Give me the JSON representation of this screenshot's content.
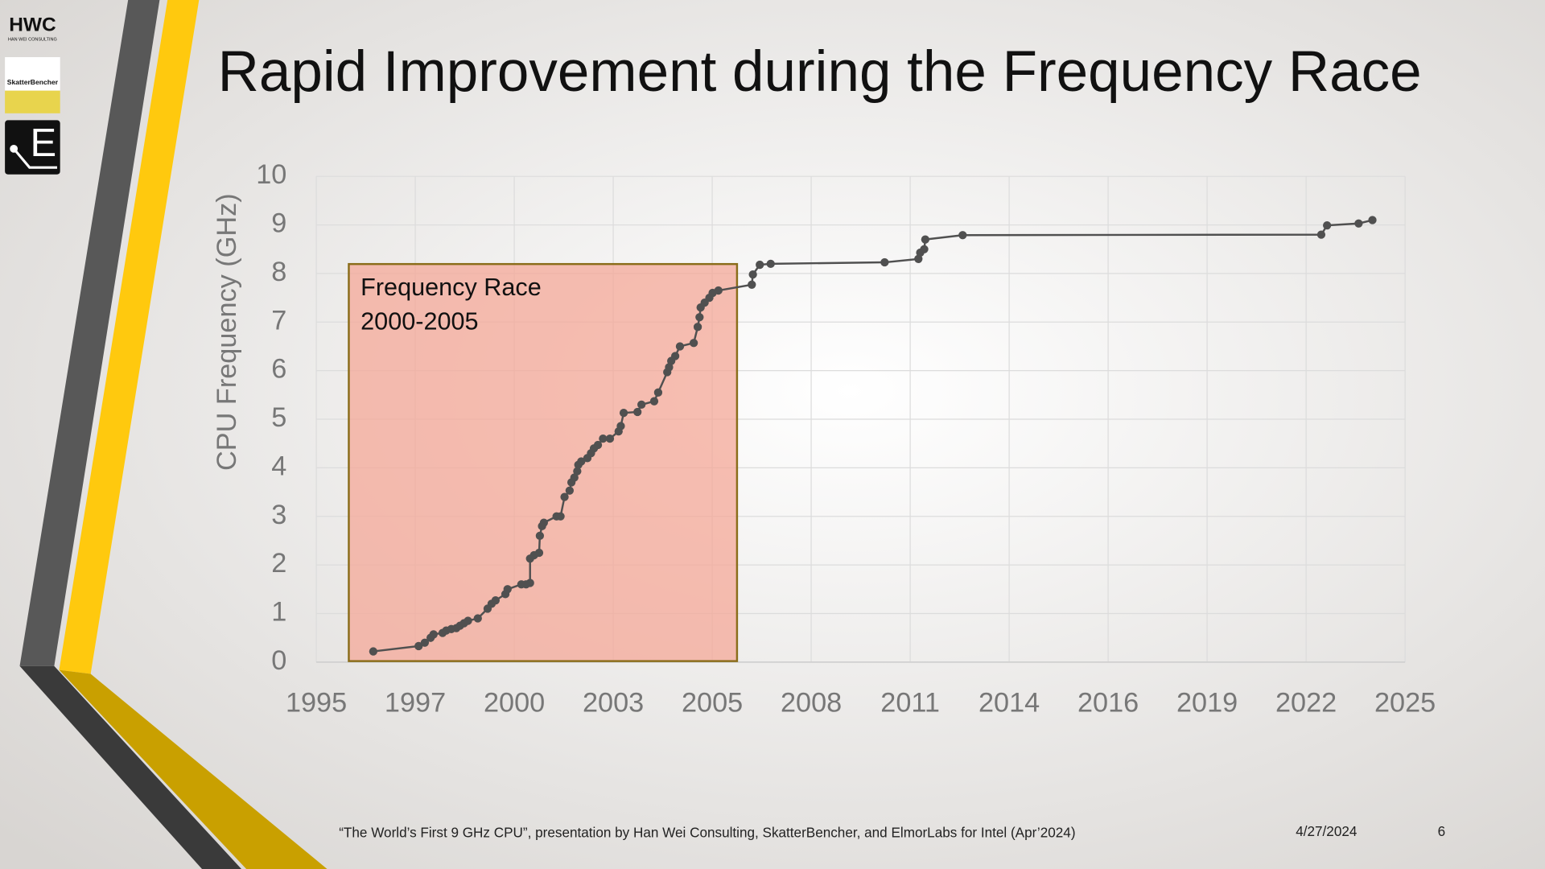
{
  "logos": {
    "hwc": "HWC",
    "hwc_sub": "HAN WEI CONSULTING",
    "skatter": "SkatterBencher",
    "elmor": "E"
  },
  "chart_data": {
    "type": "line",
    "title": "Rapid Improvement during the Frequency Race",
    "ylabel": "CPU Frequency (GHz)",
    "annotation": [
      "Frequency Race",
      "2000-2005"
    ],
    "color": "#505050",
    "grid": true,
    "xlim": [
      1995,
      2025
    ],
    "xticks": [
      {
        "value": 1995,
        "label": "1995"
      },
      {
        "value": 1997.727,
        "label": "1997"
      },
      {
        "value": 2000.455,
        "label": "2000"
      },
      {
        "value": 2003.182,
        "label": "2003"
      },
      {
        "value": 2005.909,
        "label": "2005"
      },
      {
        "value": 2008.636,
        "label": "2008"
      },
      {
        "value": 2011.364,
        "label": "2011"
      },
      {
        "value": 2014.091,
        "label": "2014"
      },
      {
        "value": 2016.818,
        "label": "2016"
      },
      {
        "value": 2019.545,
        "label": "2019"
      },
      {
        "value": 2022.273,
        "label": "2022"
      },
      {
        "value": 2025,
        "label": "2025"
      }
    ],
    "ylim": [
      0,
      10
    ],
    "yticks": [
      0,
      1,
      2,
      3,
      4,
      5,
      6,
      7,
      8,
      9,
      10
    ],
    "x": [
      1996.57,
      1997.82,
      1997.99,
      1998.15,
      1998.23,
      1998.48,
      1998.58,
      1998.72,
      1998.86,
      1998.96,
      1999.07,
      1999.18,
      1999.45,
      1999.72,
      1999.83,
      1999.94,
      2000.21,
      2000.27,
      2000.65,
      2000.78,
      2000.89,
      2000.89,
      2001.0,
      2001.14,
      2001.16,
      2001.22,
      2001.27,
      2001.62,
      2001.73,
      2001.84,
      2001.98,
      2002.03,
      2002.11,
      2002.19,
      2002.22,
      2002.3,
      2002.47,
      2002.57,
      2002.65,
      2002.76,
      2002.9,
      2003.09,
      2003.33,
      2003.39,
      2003.47,
      2003.85,
      2003.96,
      2004.31,
      2004.42,
      2004.67,
      2004.72,
      2004.78,
      2004.89,
      2005.02,
      2005.4,
      2005.51,
      2005.56,
      2005.59,
      2005.7,
      2005.83,
      2005.92,
      2006.08,
      2007.0,
      2007.03,
      2007.22,
      2007.52,
      2010.66,
      2011.59,
      2011.64,
      2011.75,
      2011.78,
      2012.81,
      2022.69,
      2022.85,
      2023.72,
      2024.1
    ],
    "values": [
      0.22,
      0.33,
      0.4,
      0.5,
      0.57,
      0.6,
      0.65,
      0.68,
      0.7,
      0.75,
      0.8,
      0.85,
      0.9,
      1.1,
      1.2,
      1.27,
      1.4,
      1.5,
      1.6,
      1.6,
      1.63,
      2.13,
      2.2,
      2.25,
      2.6,
      2.8,
      2.87,
      3.0,
      3.0,
      3.4,
      3.53,
      3.7,
      3.8,
      3.93,
      4.06,
      4.13,
      4.2,
      4.3,
      4.4,
      4.47,
      4.6,
      4.6,
      4.75,
      4.86,
      5.13,
      5.15,
      5.3,
      5.37,
      5.55,
      5.97,
      6.07,
      6.2,
      6.3,
      6.5,
      6.57,
      6.9,
      7.1,
      7.3,
      7.4,
      7.5,
      7.6,
      7.65,
      7.77,
      7.98,
      8.18,
      8.2,
      8.23,
      8.3,
      8.43,
      8.5,
      8.7,
      8.79,
      8.8,
      8.99,
      9.03,
      9.1
    ]
  },
  "footer": {
    "citation": "“The World’s First 9 GHz CPU”, presentation by Han Wei Consulting, SkatterBencher, and ElmorLabs for Intel (Apr’2024)",
    "date": "4/27/2024",
    "page": "6"
  }
}
